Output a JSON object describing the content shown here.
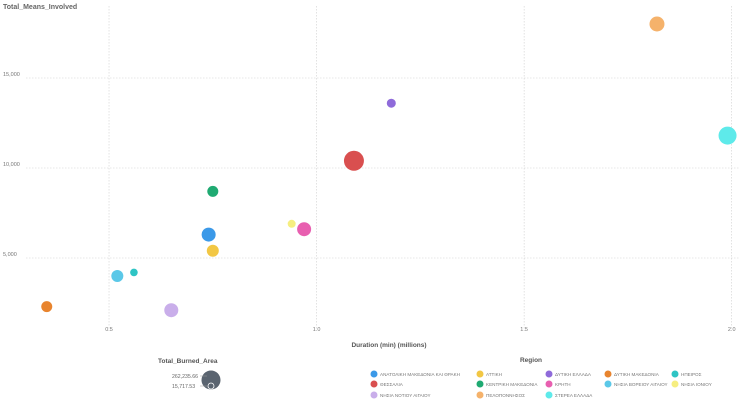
{
  "chart_data": {
    "type": "scatter",
    "xlabel": "Duration (min) (millions)",
    "ylabel": "Total_Means_Involved",
    "xlim": [
      0.3,
      2.02
    ],
    "ylim": [
      1000,
      19000
    ],
    "x_ticks": [
      0.5,
      1.0,
      1.5,
      2.0
    ],
    "x_tick_labels": [
      "0.5",
      "1.0",
      "1.5",
      "2.0"
    ],
    "y_ticks": [
      5000,
      10000,
      15000
    ],
    "y_tick_labels": [
      "5,000",
      "10,000",
      "15,000"
    ],
    "grid": true,
    "size_legend": {
      "title": "Total_Burned_Area",
      "max_label": "262,235.66",
      "min_label": "15,717.53"
    },
    "legend": {
      "title": "Region",
      "placement": "bottom-right"
    },
    "series": [
      {
        "name": "ΑΝΑΤΟΛΙΚΗ ΜΑΚΕΔΟΝΙΑ ΚΑΙ ΘΡΑΚΗ",
        "color": "#3B99E8",
        "x": 0.74,
        "y": 6300,
        "r": 7
      },
      {
        "name": "ΑΤΤΙΚΗ",
        "color": "#F2C744",
        "x": 0.75,
        "y": 5400,
        "r": 6
      },
      {
        "name": "ΔΥΤΙΚΗ ΕΛΛΑΔΑ",
        "color": "#8F6BDA",
        "x": 1.18,
        "y": 13600,
        "r": 4.5
      },
      {
        "name": "ΔΥΤΙΚΗ ΜΑΚΕΔΟΝΙΑ",
        "color": "#E8842E",
        "x": 0.35,
        "y": 2300,
        "r": 5.5
      },
      {
        "name": "ΗΠΕΙΡΟΣ",
        "color": "#2EC4C4",
        "x": 0.56,
        "y": 4200,
        "r": 3.8
      },
      {
        "name": "ΘΕΣΣΑΛΙΑ",
        "color": "#D94F4F",
        "x": 1.09,
        "y": 10400,
        "r": 10
      },
      {
        "name": "ΚΕΝΤΡΙΚΗ ΜΑΚΕΔΟΝΙΑ",
        "color": "#1FAA72",
        "x": 0.75,
        "y": 8700,
        "r": 5.5
      },
      {
        "name": "ΚΡΗΤΗ",
        "color": "#E85FB0",
        "x": 0.97,
        "y": 6600,
        "r": 7
      },
      {
        "name": "ΝΗΣΙΑ ΒΟΡΕΙΟΥ ΑΙΓΑΙΟΥ",
        "color": "#5BC8E8",
        "x": 0.52,
        "y": 4000,
        "r": 6
      },
      {
        "name": "ΝΗΣΙΑ ΙΟΝΙΟΥ",
        "color": "#F6EE80",
        "x": 0.94,
        "y": 6900,
        "r": 4
      },
      {
        "name": "ΝΗΣΙΑ ΝΟΤΙΟΥ ΑΙΓΑΙΟΥ",
        "color": "#C9AEEA",
        "x": 0.65,
        "y": 2100,
        "r": 7
      },
      {
        "name": "ΠΕΛΟΠΟΝΝΗΣΟΣ",
        "color": "#F5B26B",
        "x": 1.82,
        "y": 18000,
        "r": 7.5
      },
      {
        "name": "ΣΤΕΡΕΑ ΕΛΛΑΔΑ",
        "color": "#5EEAEA",
        "x": 1.99,
        "y": 11800,
        "r": 9
      }
    ]
  }
}
